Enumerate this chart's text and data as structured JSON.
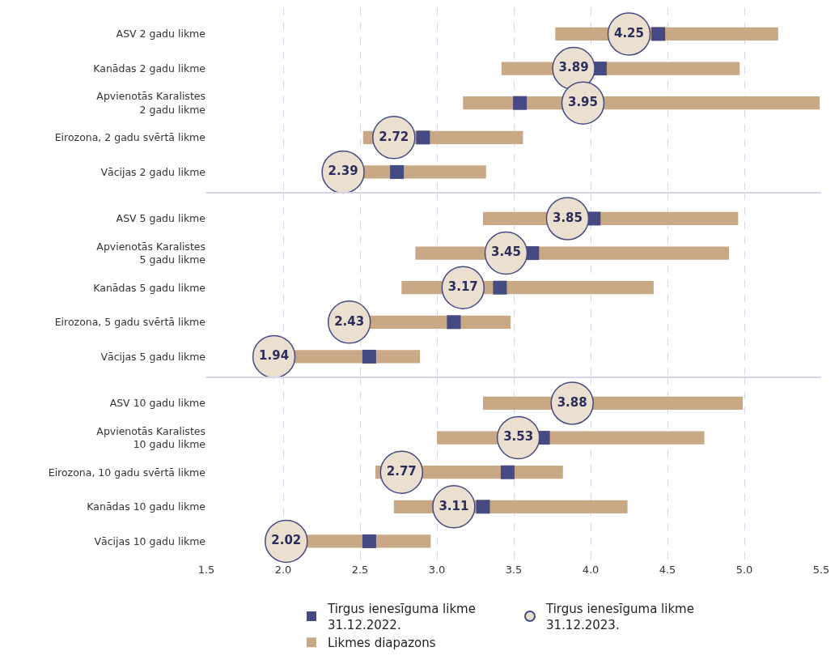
{
  "chart_data": [
    {
      "type": "bar",
      "orientation": "horizontal",
      "categories": [
        "ASV 2 gadu likme",
        "Kanādas 2 gadu likme",
        "Apvienotās Karalistes\n2 gadu likme",
        "Eirozona, 2 gadu svērtā likme",
        "Vācijas 2 gadu likme"
      ],
      "xlim": [
        1.5,
        5.5
      ],
      "xticks": [
        1.5,
        2,
        2.5,
        3,
        3.5,
        4,
        4.5,
        5,
        5.5
      ],
      "grid": "x",
      "tick_labels": "y",
      "series": [
        {
          "color": "#c9a985",
          "base": [
            3.77,
            3.42,
            3.17,
            2.52,
            2.35
          ],
          "values": [
            1.45,
            1.55,
            2.32,
            1.04,
            0.97
          ]
        },
        {
          "type": "scatter",
          "marker": "square",
          "color": "#454a82",
          "values": [
            4.44,
            4.06,
            3.54,
            2.91,
            2.74
          ]
        },
        {
          "type": "scatter",
          "marker": "circle",
          "color": "#ebdfcf",
          "values": [
            4.25,
            3.89,
            3.95,
            2.72,
            2.39
          ],
          "value_labels": [
            "4.25",
            "3.89",
            "3.95",
            "2.72",
            "2.39"
          ]
        }
      ]
    },
    {
      "type": "bar",
      "orientation": "horizontal",
      "categories": [
        "ASV 5 gadu likme",
        "Apvienotās Karalistes\n5 gadu likme",
        "Kanādas 5 gadu likme",
        "Eirozona, 5 gadu svērtā likme",
        "Vācijas 5 gadu likme"
      ],
      "xlim": [
        1.5,
        5.5
      ],
      "xticks": [
        1.5,
        2,
        2.5,
        3,
        3.5,
        4,
        4.5,
        5,
        5.5
      ],
      "grid": "x",
      "tick_labels": "y",
      "series": [
        {
          "color": "#c9a985",
          "base": [
            3.3,
            2.86,
            2.77,
            2.4,
            1.95
          ],
          "values": [
            1.66,
            2.04,
            1.64,
            1.08,
            0.94
          ]
        },
        {
          "type": "scatter",
          "marker": "square",
          "color": "#454a82",
          "values": [
            4.02,
            3.62,
            3.41,
            3.11,
            2.56
          ]
        },
        {
          "type": "scatter",
          "marker": "circle",
          "color": "#ebdfcf",
          "values": [
            3.85,
            3.45,
            3.17,
            2.43,
            1.94
          ],
          "value_labels": [
            "3.85",
            "3.45",
            "3.17",
            "2.43",
            "1.94"
          ]
        }
      ]
    },
    {
      "type": "bar",
      "orientation": "horizontal",
      "categories": [
        "ASV 10 gadu likme",
        "Apvienotās Karalistes\n10 gadu likme",
        "Eirozona, 10 gadu svērtā likme",
        "Kanādas 10 gadu likme",
        "Vācijas 10 gadu likme"
      ],
      "xlim": [
        1.5,
        5.5
      ],
      "xticks": [
        1.5,
        {
          "value": 2,
          "label": "2.0"
        },
        2.5,
        {
          "value": 3,
          "label": "3.0"
        },
        3.5,
        {
          "value": 4,
          "label": "4.0"
        },
        4.5,
        {
          "value": 5,
          "label": "5.0"
        },
        5.5
      ],
      "grid": "x",
      "legend": "bottom",
      "series": [
        {
          "name": "Likmes diapazons",
          "color": "#c9a985",
          "base": [
            3.3,
            3.0,
            2.6,
            2.72,
            2.0
          ],
          "values": [
            1.69,
            1.74,
            1.22,
            1.52,
            0.96
          ]
        },
        {
          "type": "scatter",
          "name": "Tirgus ienesīguma likme\n31.12.2022.",
          "marker": "square",
          "color": "#454a82",
          "values": [
            null,
            3.69,
            3.46,
            3.3,
            2.56
          ]
        },
        {
          "type": "scatter",
          "name": "Tirgus ienesīguma likme\n31.12.2023.",
          "marker": "circle",
          "color": "#ebdfcf",
          "values": [
            3.88,
            3.53,
            2.77,
            3.11,
            2.02
          ],
          "value_labels": [
            "3.88",
            "3.53",
            "2.77",
            "3.11",
            "2.02"
          ]
        }
      ]
    }
  ]
}
